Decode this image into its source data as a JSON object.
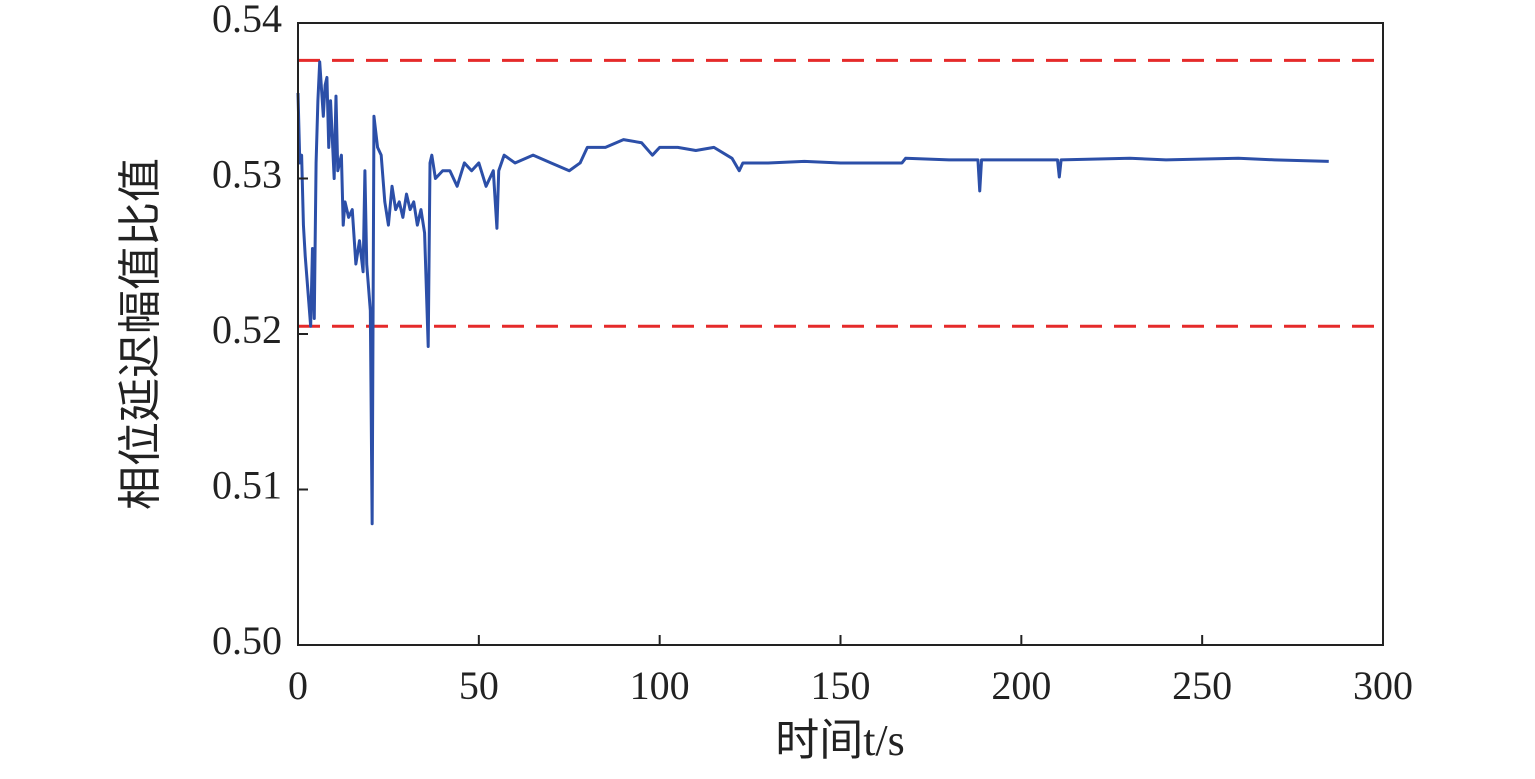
{
  "chart_data": {
    "type": "line",
    "x_label": "时间t/s",
    "y_label": "相位延迟幅值比值",
    "xlim": [
      0,
      300
    ],
    "xticks": [
      0,
      50,
      100,
      150,
      200,
      250,
      300
    ],
    "ylim": [
      0.5,
      0.54
    ],
    "yticks": [
      {
        "value": 0.5,
        "label": "0.50"
      },
      0.51,
      0.52,
      0.53,
      0.54
    ],
    "x": [
      0,
      0.5,
      1,
      1.5,
      2,
      3,
      3.5,
      4,
      4.5,
      5,
      5.5,
      6,
      7,
      7.5,
      8,
      8.5,
      9,
      10,
      10.5,
      11,
      12,
      12.5,
      13,
      14,
      15,
      16,
      17,
      18,
      18.5,
      19,
      20,
      20.5,
      21,
      22,
      23,
      24,
      25,
      26,
      27,
      28,
      29,
      30,
      31,
      32,
      33,
      34,
      35,
      36,
      36.5,
      37,
      38,
      40,
      42,
      44,
      46,
      48,
      50,
      52,
      54,
      55,
      55.5,
      57,
      60,
      65,
      70,
      75,
      78,
      80,
      85,
      90,
      95,
      98,
      100,
      105,
      110,
      115,
      120,
      122,
      123,
      130,
      140,
      150,
      160,
      167,
      168,
      180,
      188,
      188.5,
      189,
      200,
      210,
      210.5,
      211,
      230,
      240,
      260,
      270,
      285
    ],
    "series": [
      {
        "color": "#2c4fa8",
        "values": [
          0.5355,
          0.531,
          0.5315,
          0.527,
          0.525,
          0.522,
          0.5205,
          0.5255,
          0.521,
          0.531,
          0.535,
          0.5375,
          0.534,
          0.536,
          0.5365,
          0.532,
          0.535,
          0.53,
          0.5353,
          0.5305,
          0.5315,
          0.527,
          0.5285,
          0.5275,
          0.528,
          0.5245,
          0.526,
          0.524,
          0.5305,
          0.5245,
          0.5215,
          0.5078,
          0.534,
          0.532,
          0.5315,
          0.5285,
          0.527,
          0.5295,
          0.528,
          0.5285,
          0.5275,
          0.529,
          0.528,
          0.5285,
          0.527,
          0.528,
          0.5265,
          0.5192,
          0.531,
          0.5315,
          0.53,
          0.5305,
          0.5305,
          0.5295,
          0.531,
          0.5305,
          0.531,
          0.5295,
          0.5305,
          0.5268,
          0.5305,
          0.5315,
          0.531,
          0.5315,
          0.531,
          0.5305,
          0.531,
          0.532,
          0.532,
          0.5325,
          0.5323,
          0.5315,
          0.532,
          0.532,
          0.5318,
          0.532,
          0.5313,
          0.5305,
          0.531,
          0.531,
          0.5311,
          0.531,
          0.531,
          0.531,
          0.5313,
          0.5312,
          0.5312,
          0.5292,
          0.5312,
          0.5312,
          0.5312,
          0.5301,
          0.5312,
          0.5313,
          0.5312,
          0.5313,
          0.5312,
          0.5311
        ]
      }
    ],
    "reference_lines": {
      "color": "#e52a2a",
      "dashed": true,
      "values": [
        0.5376,
        0.5205
      ]
    }
  }
}
